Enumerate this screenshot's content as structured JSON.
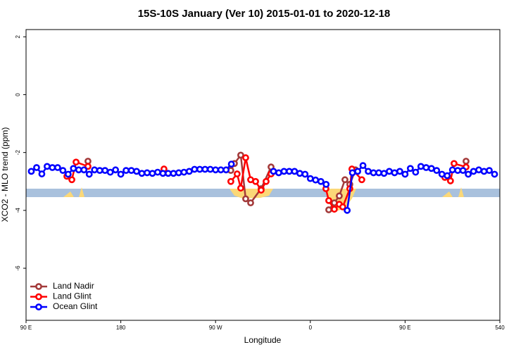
{
  "chart_data": {
    "type": "line",
    "title": "15S-10S January (Ver 10)   2015-01-01 to 2020-12-18",
    "xlabel": "Longitude",
    "ylabel": "XCO2 - MLO trend (ppm)",
    "xlim": [
      90,
      540
    ],
    "ylim": [
      -7.8,
      2.25
    ],
    "xticks": [
      {
        "value": 90,
        "label": "90 E"
      },
      180,
      {
        "value": 270,
        "label": "90 W"
      },
      {
        "value": 360,
        "label": "0"
      },
      {
        "value": 450,
        "label": "90 E"
      },
      540
    ],
    "yticks": [
      -6,
      -4,
      -2,
      0,
      2
    ],
    "legend": "bottomleft",
    "series": [
      {
        "name": "Land Nadir",
        "color": "#a33a3a",
        "x": [
          148.8,
          284.5,
          287.9,
          293.9,
          298.6,
          303.3,
          313.3,
          322.7,
          377.5,
          382.8,
          387.5,
          392.9,
          397.5,
          402.9,
          507.9
        ],
        "values": [
          -2.3,
          -2.62,
          -2.38,
          -2.09,
          -3.6,
          -3.74,
          -3.25,
          -2.5,
          -3.98,
          -3.74,
          -3.5,
          -2.94,
          -3.1,
          -2.6,
          -2.3
        ]
      },
      {
        "name": "Land Glint",
        "color": "#ff0000",
        "x": [
          128.8,
          133.5,
          137.5,
          148.8,
          221,
          284.5,
          290.5,
          293.9,
          298.6,
          303.3,
          308,
          313.3,
          318,
          322.7,
          374.8,
          377.5,
          382.8,
          387.5,
          390.8,
          397.5,
          399.5,
          408.9,
          487.8,
          493.1,
          496.5,
          507.9
        ],
        "values": [
          -2.82,
          -2.94,
          -2.33,
          -2.48,
          -2.57,
          -3.0,
          -2.74,
          -3.23,
          -2.18,
          -2.94,
          -3.0,
          -3.3,
          -3.0,
          -2.74,
          -3.25,
          -3.66,
          -3.96,
          -3.79,
          -3.88,
          -3.25,
          -2.57,
          -2.94,
          -2.86,
          -2.98,
          -2.38,
          -2.5
        ]
      },
      {
        "name": "Ocean Glint",
        "color": "#0000ff",
        "x": [
          95,
          100,
          105,
          110,
          115,
          120,
          125,
          130,
          135,
          140,
          145,
          150,
          155,
          160,
          165,
          170,
          175,
          180,
          185,
          190,
          195,
          200,
          205,
          210,
          215,
          220,
          225,
          230,
          235,
          240,
          245,
          250,
          255,
          260,
          265,
          270,
          275,
          280,
          285,
          290,
          295,
          300,
          305,
          310,
          315,
          320,
          325,
          330,
          335,
          340,
          345,
          350,
          355,
          360,
          365,
          370,
          375,
          380,
          385,
          390,
          395,
          400,
          405,
          410,
          415,
          420,
          425,
          430,
          435,
          440,
          445,
          450,
          455,
          460,
          465,
          470,
          475,
          480,
          485,
          490,
          495,
          500,
          505,
          510,
          515,
          520,
          525,
          530,
          535
        ],
        "values": [
          -2.65,
          -2.52,
          -2.74,
          -2.48,
          -2.52,
          -2.52,
          -2.62,
          -2.75,
          -2.55,
          -2.6,
          -2.6,
          -2.75,
          -2.6,
          -2.62,
          -2.62,
          -2.68,
          -2.6,
          -2.75,
          -2.62,
          -2.62,
          -2.65,
          -2.72,
          -2.7,
          -2.72,
          -2.68,
          -2.72,
          -2.72,
          -2.72,
          -2.7,
          -2.68,
          -2.65,
          -2.58,
          -2.58,
          -2.58,
          -2.58,
          -2.6,
          -2.6,
          -2.6,
          -2.4,
          null,
          null,
          null,
          null,
          null,
          null,
          null,
          -2.65,
          -2.7,
          -2.65,
          -2.65,
          -2.65,
          -2.72,
          -2.75,
          -2.9,
          -2.95,
          -3.0,
          -3.1,
          null,
          null,
          null,
          -4.0,
          -2.7,
          -2.65,
          -2.45,
          -2.65,
          -2.7,
          -2.7,
          -2.72,
          -2.65,
          -2.7,
          -2.65,
          -2.75,
          -2.55,
          -2.68,
          -2.48,
          -2.52,
          -2.55,
          -2.62,
          -2.75,
          -2.8,
          -2.6,
          -2.62,
          -2.62,
          -2.75,
          -2.65,
          -2.6,
          -2.65,
          -2.62,
          -2.75
        ]
      }
    ]
  }
}
